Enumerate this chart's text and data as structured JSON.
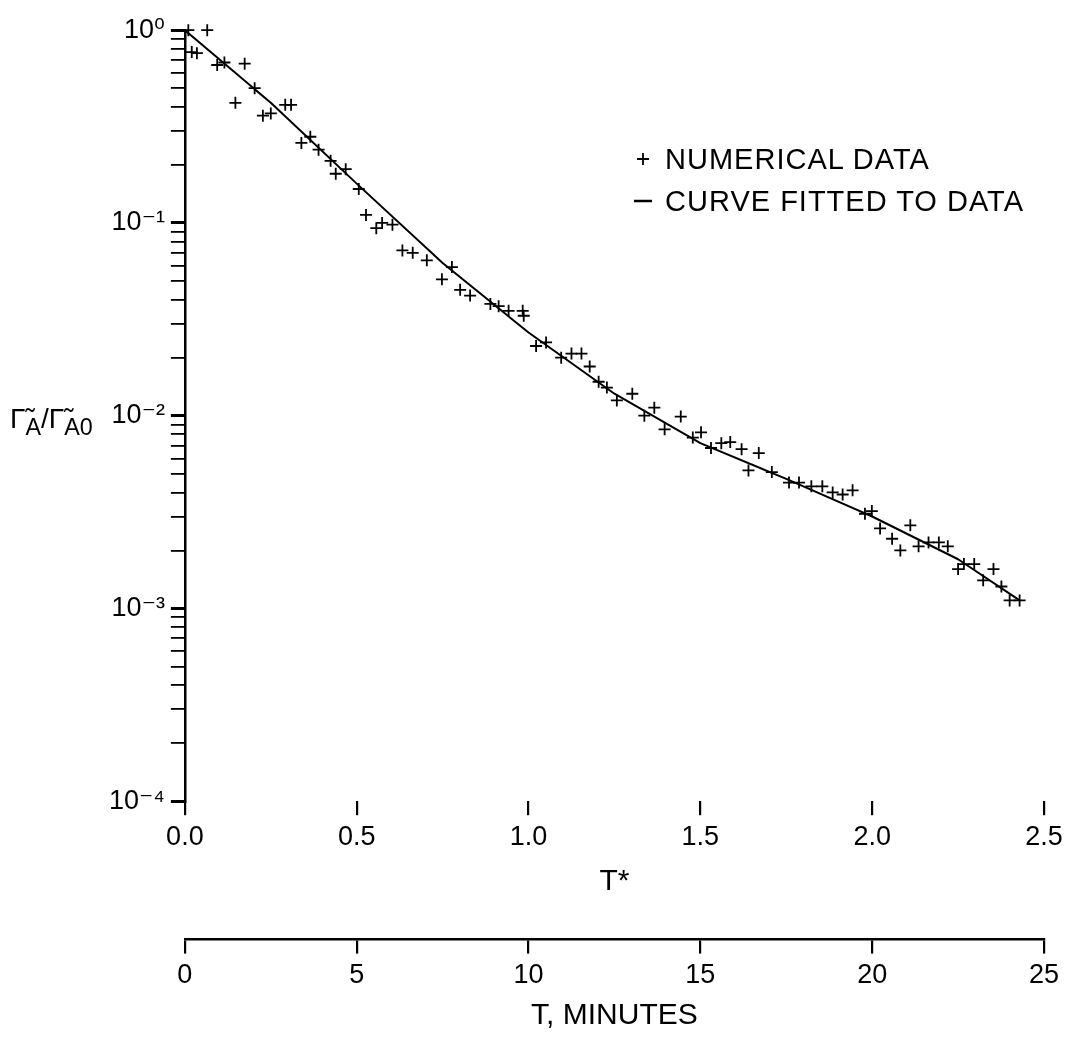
{
  "chart_data": {
    "type": "scatter",
    "xlabel": "T*",
    "ylabel": "Γ̃$_{A}$/Γ̃$_{A0}$",
    "x2label": "T, MINUTES",
    "xlim": [
      0,
      2.5
    ],
    "xticks": [
      {
        "value": 0,
        "label": "0.0"
      },
      0.5,
      {
        "value": 1,
        "label": "1.0"
      },
      1.5,
      {
        "value": 2,
        "label": "2.0"
      },
      2.5
    ],
    "x2lim": [
      0,
      25
    ],
    "x2ticks": [
      0,
      5,
      10,
      15,
      20,
      25
    ],
    "ylim": [
      0.0001,
      1
    ],
    "log": "y",
    "grid": false,
    "legend": "top right",
    "yticks": [
      {
        "value": 0.0001,
        "label": "10⁻⁴"
      },
      {
        "value": 0.0002,
        "label": null
      },
      {
        "value": 0.0003,
        "label": null
      },
      {
        "value": 0.0004,
        "label": null
      },
      {
        "value": 0.0005,
        "label": null
      },
      {
        "value": 0.0006,
        "label": null
      },
      {
        "value": 0.0007,
        "label": null
      },
      {
        "value": 0.0008,
        "label": null
      },
      {
        "value": 0.0009,
        "label": null
      },
      {
        "value": 0.001,
        "label": "10⁻³"
      },
      {
        "value": 0.002,
        "label": null
      },
      {
        "value": 0.003,
        "label": null
      },
      {
        "value": 0.004,
        "label": null
      },
      {
        "value": 0.005,
        "label": null
      },
      {
        "value": 0.006,
        "label": null
      },
      {
        "value": 0.007,
        "label": null
      },
      {
        "value": 0.008,
        "label": null
      },
      {
        "value": 0.009,
        "label": null
      },
      {
        "value": 0.01,
        "label": "10⁻²"
      },
      {
        "value": 0.02,
        "label": null
      },
      {
        "value": 0.03,
        "label": null
      },
      {
        "value": 0.04,
        "label": null
      },
      {
        "value": 0.05,
        "label": null
      },
      {
        "value": 0.06,
        "label": null
      },
      {
        "value": 0.07,
        "label": null
      },
      {
        "value": 0.08,
        "label": null
      },
      {
        "value": 0.09,
        "label": null
      },
      {
        "value": 0.1,
        "label": "10⁻¹"
      },
      {
        "value": 0.2,
        "label": null
      },
      {
        "value": 0.3,
        "label": null
      },
      {
        "value": 0.4,
        "label": null
      },
      {
        "value": 0.5,
        "label": null
      },
      {
        "value": 0.6,
        "label": null
      },
      {
        "value": 0.7,
        "label": null
      },
      {
        "value": 0.8,
        "label": null
      },
      {
        "value": 0.9,
        "label": null
      },
      {
        "value": 1,
        "label": "10⁰"
      }
    ],
    "series": [
      {
        "name": "NUMERICAL DATA",
        "marker": "cross",
        "color": "#000000",
        "x": [
          0.01,
          0.065,
          0.02,
          0.035,
          0.094,
          0.115,
          0.174,
          0.203,
          0.147,
          0.227,
          0.25,
          0.292,
          0.309,
          0.339,
          0.365,
          0.389,
          0.424,
          0.439,
          0.468,
          0.506,
          0.527,
          0.557,
          0.574,
          0.604,
          0.633,
          0.663,
          0.704,
          0.777,
          0.748,
          0.801,
          0.83,
          0.889,
          0.913,
          0.942,
          0.983,
          0.986,
          1.022,
          1.051,
          1.095,
          1.125,
          1.154,
          1.178,
          1.204,
          1.228,
          1.257,
          1.302,
          1.337,
          1.366,
          1.396,
          1.443,
          1.478,
          1.502,
          1.531,
          1.561,
          1.587,
          1.62,
          1.67,
          1.64,
          1.708,
          1.758,
          1.787,
          1.823,
          1.855,
          1.885,
          1.914,
          1.943,
          1.979,
          1.999,
          2.023,
          2.058,
          2.082,
          2.111,
          2.135,
          2.164,
          2.194,
          2.22,
          2.25,
          2.267,
          2.297,
          2.323,
          2.353,
          2.376,
          2.4,
          2.429
        ],
        "values": [
          1.0,
          1.0,
          0.77,
          0.76,
          0.66,
          0.68,
          0.67,
          0.5,
          0.42,
          0.36,
          0.37,
          0.41,
          0.41,
          0.26,
          0.28,
          0.24,
          0.21,
          0.18,
          0.19,
          0.15,
          0.11,
          0.094,
          0.1,
          0.098,
          0.072,
          0.07,
          0.064,
          0.059,
          0.051,
          0.045,
          0.042,
          0.038,
          0.037,
          0.035,
          0.035,
          0.033,
          0.023,
          0.024,
          0.02,
          0.021,
          0.021,
          0.018,
          0.015,
          0.014,
          0.012,
          0.013,
          0.01,
          0.011,
          0.0085,
          0.0099,
          0.0077,
          0.0082,
          0.0068,
          0.0072,
          0.0073,
          0.0067,
          0.0064,
          0.0052,
          0.0051,
          0.0045,
          0.0045,
          0.0043,
          0.0043,
          0.004,
          0.0039,
          0.0041,
          0.0031,
          0.0032,
          0.0026,
          0.0023,
          0.002,
          0.0027,
          0.0021,
          0.0022,
          0.0022,
          0.0021,
          0.0016,
          0.0017,
          0.0017,
          0.0014,
          0.0016,
          0.0013,
          0.0011,
          0.0011
        ]
      },
      {
        "name": "CURVE FITTED TO DATA",
        "type": "line",
        "color": "#000000",
        "x": [
          0,
          0.25,
          0.5,
          0.75,
          1.0,
          1.25,
          1.5,
          1.75,
          2.0,
          2.25,
          2.43
        ],
        "values": [
          1.0,
          0.42,
          0.16,
          0.062,
          0.027,
          0.013,
          0.0072,
          0.0047,
          0.003,
          0.0018,
          0.0011
        ]
      }
    ]
  }
}
